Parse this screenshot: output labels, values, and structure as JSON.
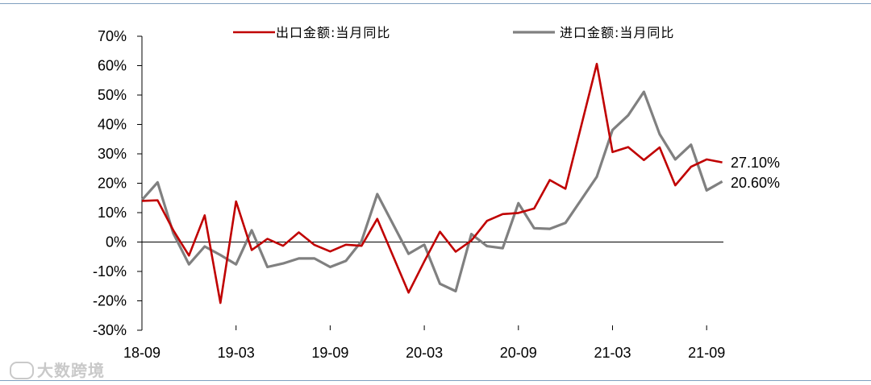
{
  "chart_data": {
    "type": "line",
    "x": [
      "18-09",
      "18-10",
      "18-11",
      "18-12",
      "19-01",
      "19-02",
      "19-03",
      "19-04",
      "19-05",
      "19-06",
      "19-07",
      "19-08",
      "19-09",
      "19-10",
      "19-11",
      "19-12",
      "20-01",
      "20-02",
      "20-03",
      "20-04",
      "20-05",
      "20-06",
      "20-07",
      "20-08",
      "20-09",
      "20-10",
      "20-11",
      "20-12",
      "21-01",
      "21-02",
      "21-03",
      "21-04",
      "21-05",
      "21-06",
      "21-07",
      "21-08",
      "21-09",
      "21-10"
    ],
    "x_tick_labels": [
      "18-09",
      "19-03",
      "19-09",
      "20-03",
      "20-09",
      "21-03",
      "21-09"
    ],
    "ylim": [
      -30,
      70
    ],
    "y_ticks": [
      -30,
      -20,
      -10,
      0,
      10,
      20,
      30,
      40,
      50,
      60,
      70
    ],
    "y_tick_format": "%",
    "grid": false,
    "legend_position": "top",
    "series": [
      {
        "name": "出口金额:当月同比",
        "color": "#c00000",
        "values": [
          14.0,
          14.2,
          4.0,
          -4.6,
          9.1,
          -20.7,
          13.8,
          -2.7,
          1.1,
          -1.3,
          3.3,
          -1.0,
          -3.2,
          -0.9,
          -1.3,
          7.9,
          null,
          -17.2,
          -6.6,
          3.5,
          -3.3,
          0.5,
          7.2,
          9.5,
          9.9,
          11.4,
          21.1,
          18.1,
          null,
          60.6,
          30.6,
          32.3,
          27.9,
          32.2,
          19.3,
          25.6,
          28.1,
          27.1
        ],
        "end_label": "27.10%"
      },
      {
        "name": "进口金额:当月同比",
        "color": "#808080",
        "values": [
          14.3,
          20.3,
          3.0,
          -7.6,
          -1.5,
          -4.4,
          -7.6,
          4.0,
          -8.5,
          -7.3,
          -5.6,
          -5.6,
          -8.5,
          -6.4,
          0.3,
          16.3,
          null,
          -4.0,
          -0.9,
          -14.2,
          -16.7,
          2.7,
          -1.4,
          -2.1,
          13.2,
          4.7,
          4.5,
          6.5,
          null,
          22.2,
          38.1,
          43.1,
          51.1,
          36.7,
          28.1,
          33.1,
          17.6,
          20.6
        ],
        "end_label": "20.60%"
      }
    ]
  },
  "watermark": {
    "text": "大数跨境"
  }
}
